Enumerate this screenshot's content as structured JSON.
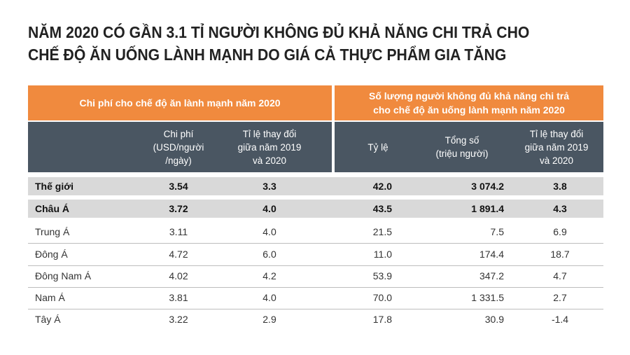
{
  "title": {
    "line1": "NĂM 2020 CÓ GẦN 3.1 TỈ NGƯỜI KHÔNG ĐỦ KHẢ NĂNG CHI TRẢ CHO",
    "line2": "CHẾ ĐỘ ĂN UỐNG LÀNH MẠNH DO GIÁ CẢ THỰC PHẨM GIA TĂNG"
  },
  "colors": {
    "orange": "#f08a3e",
    "slate": "#4a5662",
    "highlight": "#d9d9d9"
  },
  "chart_data": {
    "type": "table",
    "groups": [
      {
        "label": "Chi phí cho chế độ ăn lành mạnh năm 2020"
      },
      {
        "label_line1": "Số lượng người không đủ khả năng chi trả",
        "label_line2": "cho chế độ ăn uống lành mạnh năm 2020"
      }
    ],
    "headers": [
      {
        "lines": [
          "Chi phí",
          "(USD/người",
          "/ngày)"
        ]
      },
      {
        "lines": [
          "Tỉ lệ thay đổi",
          "giữa năm 2019",
          "và 2020"
        ]
      },
      {
        "lines": [
          "Tỷ lệ"
        ]
      },
      {
        "lines": [
          "Tổng số",
          "(triệu người)"
        ]
      },
      {
        "lines": [
          "Tỉ lệ thay đổi",
          "giữa năm 2019",
          "và 2020"
        ]
      }
    ],
    "rows": [
      {
        "name": "Thế giới",
        "cost": "3.54",
        "cost_change": "3.3",
        "rate": "42.0",
        "total": "3 074.2",
        "total_change": "3.8",
        "bold": true
      },
      {
        "name": "Châu Á",
        "cost": "3.72",
        "cost_change": "4.0",
        "rate": "43.5",
        "total": "1 891.4",
        "total_change": "4.3",
        "bold": true
      },
      {
        "name": "Trung Á",
        "cost": "3.11",
        "cost_change": "4.0",
        "rate": "21.5",
        "total": "7.5",
        "total_change": "6.9",
        "bold": false
      },
      {
        "name": "Đông Á",
        "cost": "4.72",
        "cost_change": "6.0",
        "rate": "11.0",
        "total": "174.4",
        "total_change": "18.7",
        "bold": false
      },
      {
        "name": "Đông Nam Á",
        "cost": "4.02",
        "cost_change": "4.2",
        "rate": "53.9",
        "total": "347.2",
        "total_change": "4.7",
        "bold": false
      },
      {
        "name": "Nam Á",
        "cost": "3.81",
        "cost_change": "4.0",
        "rate": "70.0",
        "total": "1 331.5",
        "total_change": "2.7",
        "bold": false
      },
      {
        "name": "Tây Á",
        "cost": "3.22",
        "cost_change": "2.9",
        "rate": "17.8",
        "total": "30.9",
        "total_change": "-1.4",
        "bold": false
      }
    ]
  }
}
